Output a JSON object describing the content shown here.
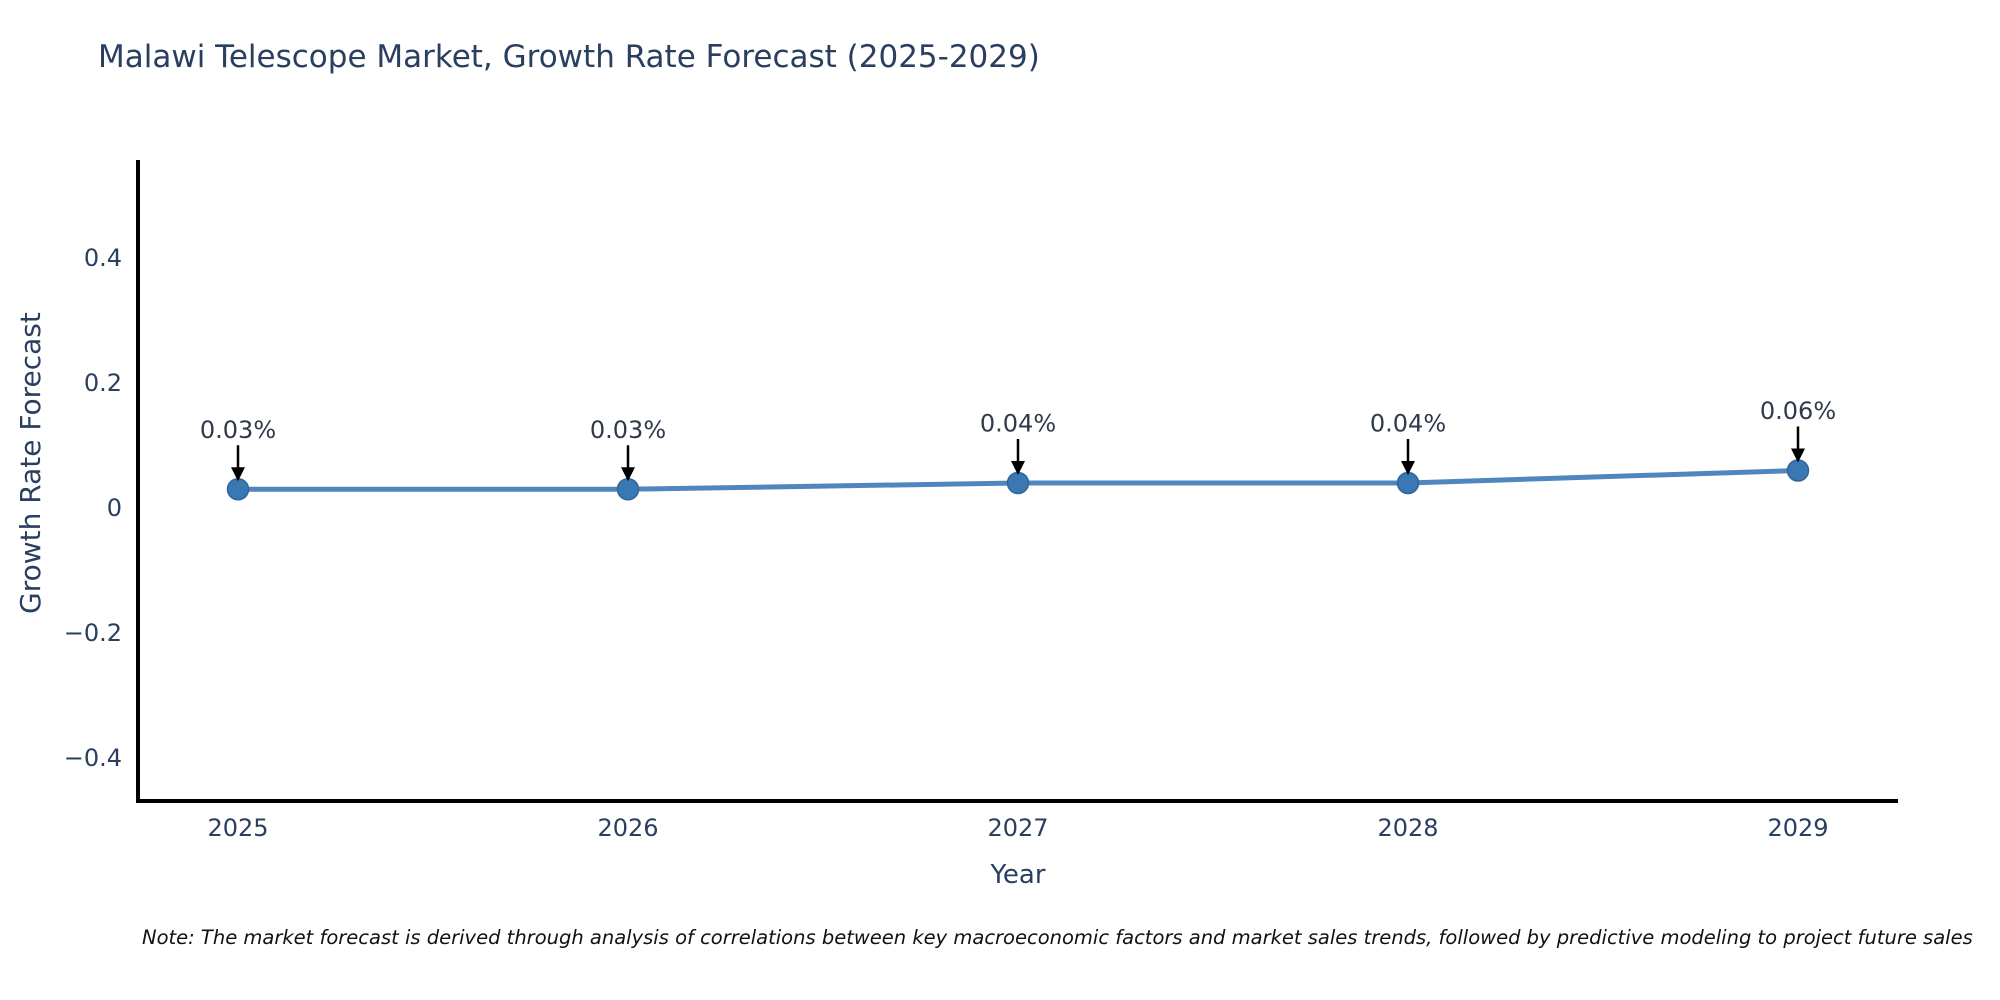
{
  "chart_data": {
    "type": "line",
    "title": "Malawi Telescope Market, Growth Rate Forecast (2025-2029)",
    "xlabel": "Year",
    "ylabel": "Growth Rate Forecast",
    "categories": [
      "2025",
      "2026",
      "2027",
      "2028",
      "2029"
    ],
    "values": [
      0.03,
      0.03,
      0.04,
      0.04,
      0.06
    ],
    "point_labels": [
      "0.03%",
      "0.03%",
      "0.04%",
      "0.04%",
      "0.06%"
    ],
    "yticks": [
      {
        "v": -0.4,
        "label": "−0.4"
      },
      {
        "v": -0.2,
        "label": "−0.2"
      },
      {
        "v": 0,
        "label": "0"
      },
      {
        "v": 0.2,
        "label": "0.2"
      },
      {
        "v": 0.4,
        "label": "0.4"
      }
    ],
    "ylim": [
      -0.47,
      0.56
    ],
    "grid": false,
    "legend": false,
    "colors": {
      "line": "#4e86bd",
      "marker": "#3a78b4",
      "marker_edge": "#2f6699",
      "arrow": "#000000",
      "axis": "#000000",
      "text": "#2a3f5f"
    },
    "note": "Note: The market forecast is derived through analysis of correlations between key macroeconomic factors and market sales trends, followed by predictive modeling to project future sales"
  }
}
